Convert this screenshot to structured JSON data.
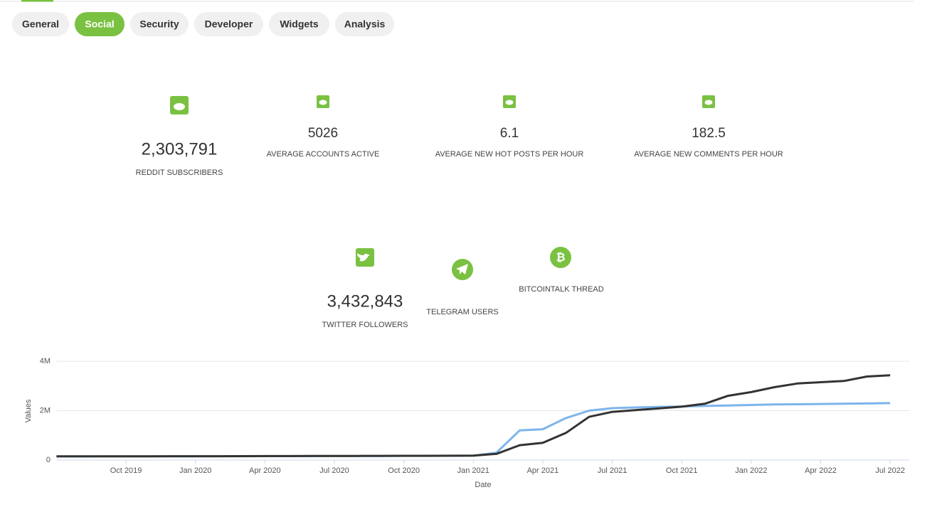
{
  "tabs": [
    "General",
    "Social",
    "Security",
    "Developer",
    "Widgets",
    "Analysis"
  ],
  "reddit_stats": [
    {
      "value": "2,303,791",
      "label": "REDDIT SUBSCRIBERS"
    },
    {
      "value": "5026",
      "label": "AVERAGE ACCOUNTS ACTIVE"
    },
    {
      "value": "6.1",
      "label": "AVERAGE NEW HOT POSTS PER HOUR"
    },
    {
      "value": "182.5",
      "label": "AVERAGE NEW COMMENTS PER HOUR"
    }
  ],
  "twitter": {
    "value": "3,432,843",
    "label": "TWITTER FOLLOWERS"
  },
  "telegram": {
    "label": "TELEGRAM USERS"
  },
  "bitcointalk": {
    "label": "BITCOINTALK THREAD"
  },
  "chart_data": {
    "type": "line",
    "x_label": "Date",
    "y_label": "Values",
    "x": [
      "2019-07",
      "2019-08",
      "2019-09",
      "2019-10",
      "2019-11",
      "2019-12",
      "2020-01",
      "2020-02",
      "2020-03",
      "2020-04",
      "2020-05",
      "2020-06",
      "2020-07",
      "2020-08",
      "2020-09",
      "2020-10",
      "2020-11",
      "2020-12",
      "2021-01",
      "2021-02",
      "2021-03",
      "2021-04",
      "2021-05",
      "2021-06",
      "2021-07",
      "2021-08",
      "2021-09",
      "2021-10",
      "2021-11",
      "2021-12",
      "2022-01",
      "2022-02",
      "2022-03",
      "2022-04",
      "2022-05",
      "2022-06",
      "2022-07"
    ],
    "xlim": [
      "2019-07",
      "2022-08"
    ],
    "xticks": [
      {
        "value": "2019-10",
        "label": "Oct 2019"
      },
      {
        "value": "2020-01",
        "label": "Jan 2020"
      },
      {
        "value": "2020-04",
        "label": "Apr 2020"
      },
      {
        "value": "2020-07",
        "label": "Jul 2020"
      },
      {
        "value": "2020-10",
        "label": "Oct 2020"
      },
      {
        "value": "2021-01",
        "label": "Jan 2021"
      },
      {
        "value": "2021-04",
        "label": "Apr 2021"
      },
      {
        "value": "2021-07",
        "label": "Jul 2021"
      },
      {
        "value": "2021-10",
        "label": "Oct 2021"
      },
      {
        "value": "2022-01",
        "label": "Jan 2022"
      },
      {
        "value": "2022-04",
        "label": "Apr 2022"
      },
      {
        "value": "2022-07",
        "label": "Jul 2022"
      }
    ],
    "ylim": [
      0,
      4000000
    ],
    "yticks": [
      0,
      {
        "value": 2000000,
        "label": "2M"
      },
      {
        "value": 4000000,
        "label": "4M"
      }
    ],
    "grid": true,
    "series": [
      {
        "color": "#7cb5ec",
        "values": [
          148000,
          148000,
          149000,
          150000,
          151000,
          152000,
          153000,
          154000,
          155000,
          157000,
          159000,
          161000,
          163000,
          165000,
          167000,
          169000,
          171000,
          173000,
          180000,
          300000,
          1200000,
          1250000,
          1700000,
          2000000,
          2100000,
          2130000,
          2150000,
          2170000,
          2190000,
          2210000,
          2230000,
          2250000,
          2260000,
          2270000,
          2280000,
          2290000,
          2303791
        ]
      },
      {
        "color": "#333333",
        "values": [
          150000,
          150000,
          150000,
          152000,
          152000,
          154000,
          155000,
          156000,
          158000,
          160000,
          162000,
          164000,
          166000,
          168000,
          170000,
          172000,
          174000,
          176000,
          180000,
          250000,
          600000,
          700000,
          1100000,
          1750000,
          1950000,
          2020000,
          2090000,
          2160000,
          2280000,
          2600000,
          2750000,
          2950000,
          3100000,
          3150000,
          3200000,
          3380000,
          3432843
        ]
      }
    ]
  }
}
